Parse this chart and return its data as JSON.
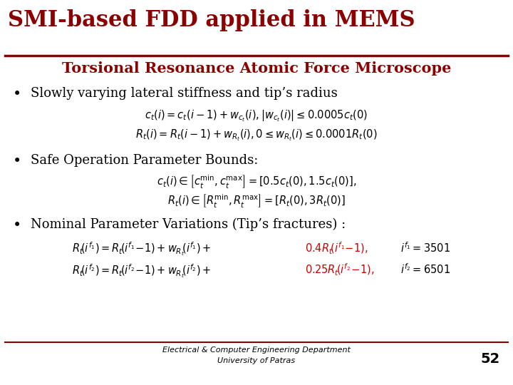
{
  "title": "SMI-based FDD applied in MEMS",
  "subtitle": "Torsional Resonance Atomic Force Microscope",
  "title_color": "#8B0000",
  "subtitle_color": "#8B0000",
  "title_fontsize": 22,
  "subtitle_fontsize": 15,
  "background_color": "#FFFFFF",
  "divider_color": "#8B0000",
  "bullet1": "Slowly varying lateral stiffness and tip’s radius",
  "bullet2": "Safe Operation Parameter Bounds:",
  "bullet3": "Nominal Parameter Variations (Tip’s fractures) :",
  "footer1": "Electrical & Computer Engineering Department",
  "footer2": "University of Patras",
  "page_number": "52",
  "eq_color": "#000000",
  "highlight_color": "#CC0000",
  "bullet_fontsize": 13,
  "eq_fontsize": 10.5,
  "footer_fontsize": 8
}
